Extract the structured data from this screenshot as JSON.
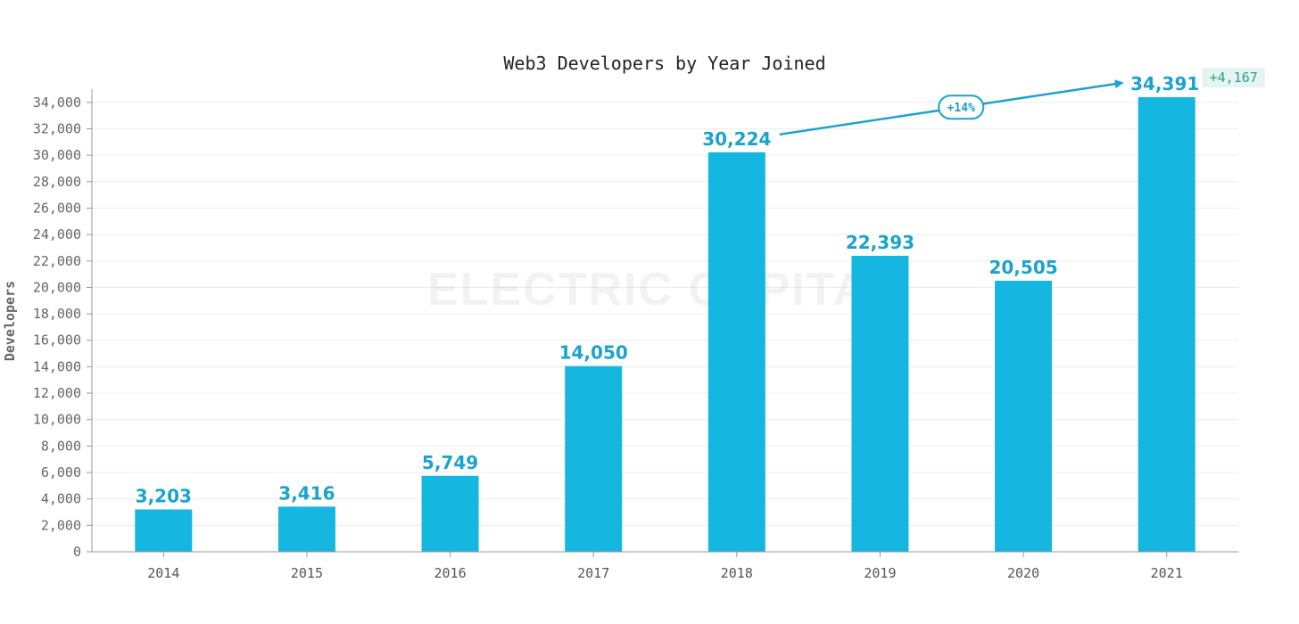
{
  "chart_data": {
    "type": "bar",
    "title": "Web3 Developers by Year Joined",
    "xlabel": "",
    "ylabel": "Developers",
    "categories": [
      "2014",
      "2015",
      "2016",
      "2017",
      "2018",
      "2019",
      "2020",
      "2021"
    ],
    "values": [
      3203,
      3416,
      5749,
      14050,
      30224,
      22393,
      20505,
      34391
    ],
    "value_labels": [
      "3,203",
      "3,416",
      "5,749",
      "14,050",
      "30,224",
      "22,393",
      "20,505",
      "34,391"
    ],
    "ylim": [
      0,
      35000
    ],
    "yticks": [
      0,
      2000,
      4000,
      6000,
      8000,
      10000,
      12000,
      14000,
      16000,
      18000,
      20000,
      22000,
      24000,
      26000,
      28000,
      30000,
      32000,
      34000
    ],
    "ytick_labels": [
      "0",
      "2,000",
      "4,000",
      "6,000",
      "8,000",
      "10,000",
      "12,000",
      "14,000",
      "16,000",
      "18,000",
      "20,000",
      "22,000",
      "24,000",
      "26,000",
      "28,000",
      "30,000",
      "32,000",
      "34,000"
    ],
    "grid": true,
    "bar_color": "#15b6e0",
    "label_color": "#1aa3cf",
    "annotations": {
      "growth_from": "2018",
      "growth_to": "2021",
      "growth_label": "+14%",
      "increase_label": "+4,167",
      "arrow_color": "#1aa3cf",
      "increase_bg": "#e4f4f0",
      "increase_color": "#2e9e8a"
    },
    "watermark": "ELECTRIC CAPITAL"
  }
}
